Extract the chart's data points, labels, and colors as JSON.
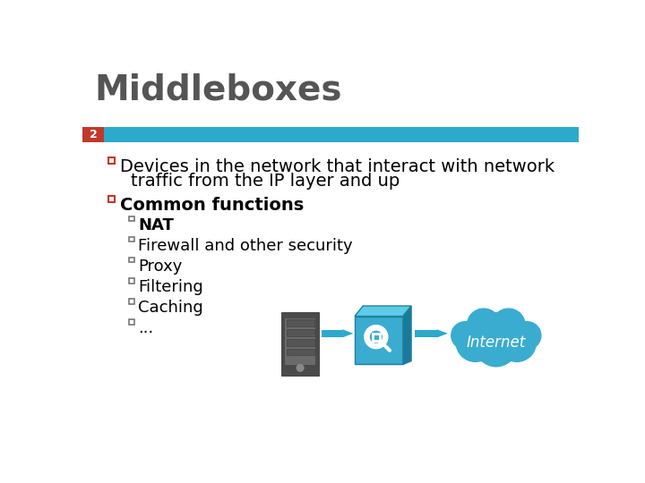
{
  "title": "Middleboxes",
  "title_fontsize": 28,
  "title_color": "#555555",
  "slide_number": "2",
  "slide_num_bg": "#C0392B",
  "slide_num_color": "#FFFFFF",
  "bar_color": "#2BAACC",
  "bullet1_line1": "Devices in the network that interact with network",
  "bullet1_line2": "traffic from the IP layer and up",
  "bullet2_main": "Common functions",
  "sub_bullets": [
    "NAT",
    "Firewall and other security",
    "Proxy",
    "Filtering",
    "Caching",
    "..."
  ],
  "bullet_square_color": "#C0392B",
  "sub_bullet_square_color": "#777777",
  "text_color": "#000000",
  "bg_color": "#FFFFFF",
  "main_fontsize": 14,
  "sub_fontsize": 13,
  "internet_cloud_color": "#3AACCF",
  "internet_text": "Internet",
  "arrow_color": "#2BAACC"
}
